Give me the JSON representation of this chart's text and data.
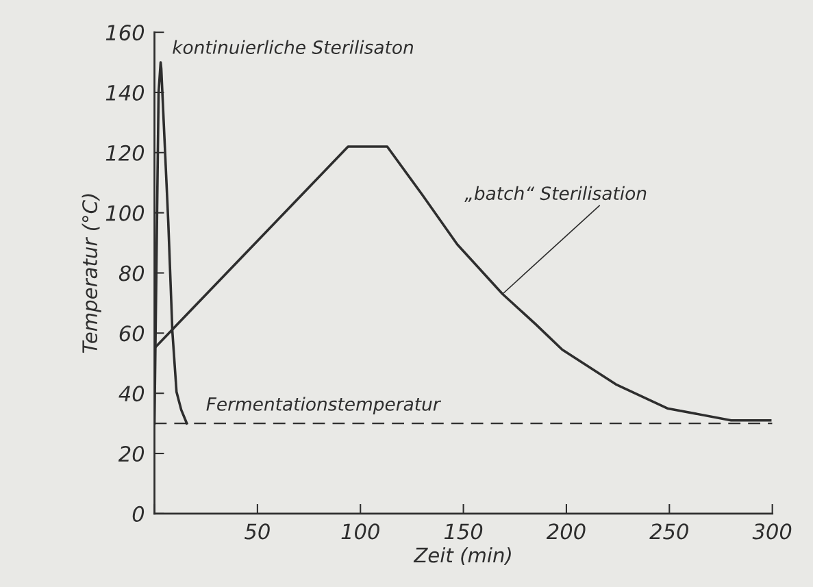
{
  "chart_data": {
    "type": "line",
    "xlabel": "Zeit (min)",
    "ylabel": "Temperatur (°C)",
    "xlim": [
      0,
      300
    ],
    "ylim": [
      0,
      160
    ],
    "xticks": [
      {
        "value": 0,
        "label": null
      },
      50,
      100,
      150,
      200,
      250,
      300
    ],
    "yticks": [
      0,
      20,
      40,
      60,
      80,
      100,
      120,
      140,
      160
    ],
    "grid": false,
    "legend": false,
    "marker": "none",
    "line_style": "solid",
    "series": [
      {
        "color": "#2e2e2e",
        "x": [
          0,
          2,
          3,
          3.3,
          6.7,
          8.7,
          10.7,
          13,
          15.7
        ],
        "values": [
          30,
          140,
          150,
          148,
          97,
          60.5,
          40.5,
          34.5,
          30
        ]
      },
      {
        "color": "#2e2e2e",
        "x": [
          0,
          94,
          113,
          130,
          147,
          169,
          185,
          198,
          224,
          249,
          280,
          299
        ],
        "values": [
          55,
          122,
          122,
          106,
          89.5,
          73,
          63,
          54.5,
          43,
          35,
          31,
          31
        ]
      }
    ],
    "ref_lines": [
      {
        "axis": "y",
        "value": 30,
        "label": "Fermentationstemperatur",
        "color": "#2e2e2e",
        "line_style": "dashed"
      }
    ],
    "annotations": [
      {
        "text": "kontinuierliche Sterilisaton",
        "x": 3,
        "y": 150
      },
      {
        "text": "„batch“ Sterilisation",
        "x": 169,
        "y": 73
      }
    ]
  }
}
